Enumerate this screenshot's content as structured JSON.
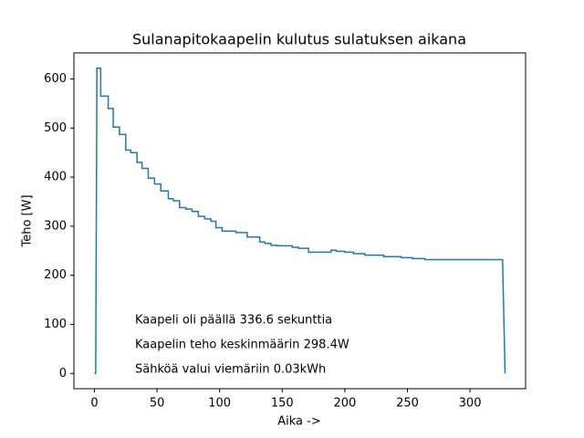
{
  "chart_data": {
    "type": "line",
    "title": "Sulanapitokaapelin kulutus sulatuksen aikana",
    "x_label": "Aika ->",
    "y_label": "Teho [W]",
    "x": [
      0,
      1,
      2,
      5,
      5,
      11,
      11,
      15,
      15,
      20,
      20,
      25,
      25,
      29,
      29,
      34,
      34,
      38,
      38,
      43,
      43,
      48,
      48,
      53,
      53,
      59,
      59,
      63,
      63,
      68,
      68,
      73,
      73,
      78,
      78,
      83,
      83,
      88,
      88,
      93,
      93,
      97,
      97,
      102,
      102,
      113,
      113,
      122,
      122,
      132,
      132,
      136,
      136,
      141,
      141,
      146,
      146,
      158,
      158,
      163,
      163,
      171,
      171,
      189,
      189,
      193,
      193,
      200,
      200,
      207,
      207,
      216,
      216,
      231,
      231,
      245,
      245,
      254,
      254,
      264,
      264,
      326,
      328
    ],
    "series": [
      {
        "name": "Teho",
        "color": "#1f77b4",
        "values": [
          0,
          0,
          622,
          622,
          565,
          565,
          540,
          540,
          502,
          502,
          487,
          487,
          455,
          455,
          450,
          450,
          430,
          430,
          418,
          418,
          398,
          398,
          386,
          386,
          372,
          372,
          356,
          356,
          352,
          352,
          338,
          338,
          335,
          335,
          330,
          330,
          320,
          320,
          315,
          315,
          310,
          310,
          297,
          297,
          290,
          290,
          287,
          287,
          278,
          278,
          268,
          268,
          265,
          265,
          261,
          261,
          260,
          260,
          257,
          257,
          255,
          255,
          247,
          247,
          251,
          251,
          249,
          249,
          247,
          247,
          244,
          244,
          241,
          241,
          238,
          238,
          236,
          236,
          234,
          234,
          232,
          232,
          0
        ]
      }
    ],
    "xlim": [
      -16.4,
      344.4
    ],
    "ylim": [
      -31.1,
      653.1
    ],
    "xticks": [
      0,
      50,
      100,
      150,
      200,
      250,
      300
    ],
    "yticks": [
      0,
      100,
      200,
      300,
      400,
      500,
      600
    ],
    "grid": false,
    "annotations": [
      "Kaapeli oli päällä 336.6 sekunttia",
      "Kaapelin teho keskinmäärin 298.4W",
      "Sähköä valui viemäriin 0.03kWh"
    ]
  }
}
